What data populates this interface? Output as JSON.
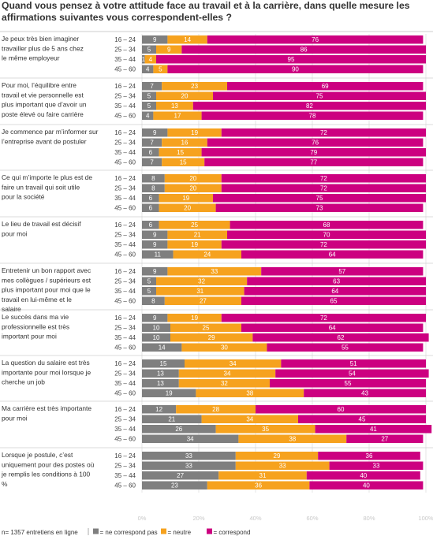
{
  "title": "Quand vous pensez à votre attitude face au travail et à la carrière, dans quelle mesure les affirmations suivantes vous correspondent-elles ?",
  "footnote": "n= 1357 entretiens en ligne",
  "colors": {
    "ne": "#7f7f7f",
    "neutre": "#f6a21e",
    "corr": "#cc0080"
  },
  "chart_data": {
    "type": "bar",
    "stacked": true,
    "orientation": "horizontal",
    "xlim": [
      0,
      100
    ],
    "x_ticks": [
      "0%",
      "20%",
      "40%",
      "60%",
      "80%",
      "100%"
    ],
    "age_groups": [
      "16 – 24",
      "25 – 34",
      "35 – 44",
      "45 – 60"
    ],
    "legend": [
      {
        "key": "ne",
        "label": "= ne correspond pas"
      },
      {
        "key": "neutre",
        "label": "= neutre"
      },
      {
        "key": "corr",
        "label": "= correspond"
      }
    ],
    "statements": [
      {
        "label": "Je peux très bien imaginer travailler plus de 5 ans chez le même employeur",
        "rows": [
          [
            9,
            14,
            76
          ],
          [
            5,
            9,
            86
          ],
          [
            1,
            4,
            95
          ],
          [
            4,
            5,
            90
          ]
        ]
      },
      {
        "label": "Pour moi, l’équilibre entre travail et vie personnelle est plus important que d’avoir un poste élevé ou faire carrière",
        "rows": [
          [
            7,
            23,
            69
          ],
          [
            5,
            20,
            75
          ],
          [
            5,
            13,
            82
          ],
          [
            4,
            17,
            78
          ]
        ]
      },
      {
        "label": "Je commence par m’informer sur l’entreprise avant de postuler",
        "rows": [
          [
            9,
            19,
            72
          ],
          [
            7,
            16,
            76
          ],
          [
            6,
            15,
            79
          ],
          [
            7,
            15,
            77
          ]
        ]
      },
      {
        "label": "Ce qui m’importe le plus est de faire un travail qui soit utile pour la société",
        "rows": [
          [
            8,
            20,
            72
          ],
          [
            8,
            20,
            72
          ],
          [
            6,
            19,
            75
          ],
          [
            6,
            20,
            73
          ]
        ]
      },
      {
        "label": "Le lieu de travail est décisif pour moi",
        "rows": [
          [
            6,
            25,
            68
          ],
          [
            9,
            21,
            70
          ],
          [
            9,
            19,
            72
          ],
          [
            11,
            24,
            64
          ]
        ]
      },
      {
        "label": "Entretenir un bon rapport avec mes collègues / supérieurs est plus important pour moi que le travail en lui-même et le salaire",
        "rows": [
          [
            9,
            33,
            57
          ],
          [
            5,
            32,
            63
          ],
          [
            5,
            31,
            64
          ],
          [
            8,
            27,
            65
          ]
        ]
      },
      {
        "label": "Le succès dans ma vie professionnelle est très important pour moi",
        "rows": [
          [
            9,
            19,
            72
          ],
          [
            10,
            25,
            64
          ],
          [
            10,
            29,
            62
          ],
          [
            14,
            30,
            55
          ]
        ]
      },
      {
        "label": "La question du salaire est très importante pour moi lorsque je cherche un job",
        "rows": [
          [
            15,
            34,
            51
          ],
          [
            13,
            34,
            54
          ],
          [
            13,
            32,
            55
          ],
          [
            19,
            38,
            43
          ]
        ]
      },
      {
        "label": "Ma carrière est très importante pour moi",
        "rows": [
          [
            12,
            28,
            60
          ],
          [
            21,
            34,
            45
          ],
          [
            26,
            35,
            41
          ],
          [
            34,
            38,
            27
          ]
        ]
      },
      {
        "label": "Lorsque je postule, c’est uniquement pour des postes où je remplis les conditions à 100 %",
        "rows": [
          [
            33,
            29,
            36
          ],
          [
            33,
            33,
            33
          ],
          [
            27,
            31,
            40
          ],
          [
            23,
            36,
            40
          ]
        ]
      }
    ]
  }
}
